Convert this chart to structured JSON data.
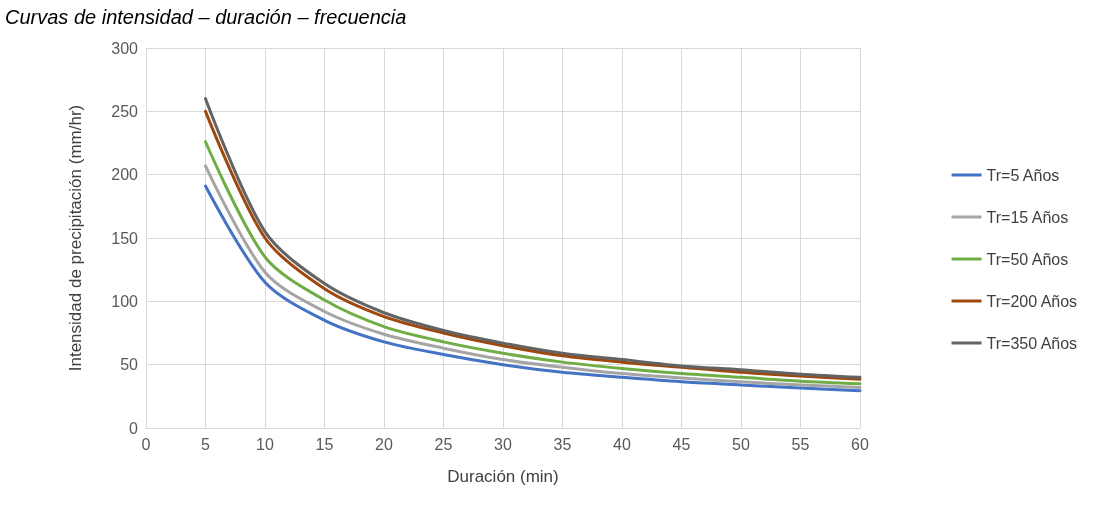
{
  "chart_data": {
    "type": "line",
    "title": "Curvas de intensidad – duración – frecuencia",
    "xlabel": "Duración (min)",
    "ylabel": "Intensidad de precipitación (mm/hr)",
    "x": [
      5,
      10,
      15,
      20,
      25,
      30,
      35,
      40,
      45,
      50,
      55,
      60
    ],
    "series": [
      {
        "name": "Tr=5 Años",
        "color": "#4472c4",
        "values": [
          191,
          115,
          85,
          68,
          58,
          50,
          44,
          40,
          36.5,
          34,
          31.5,
          29.5
        ]
      },
      {
        "name": "Tr=15 Años",
        "color": "#a5a5a5",
        "values": [
          207,
          123,
          92,
          74,
          63,
          54,
          48,
          43,
          39.5,
          36.5,
          34,
          32
        ]
      },
      {
        "name": "Tr=50 Años",
        "color": "#70ad47",
        "values": [
          226,
          135,
          101,
          80,
          68,
          59,
          52,
          47,
          43,
          40,
          37,
          35
        ]
      },
      {
        "name": "Tr=200 Años",
        "color": "#9e480e",
        "values": [
          250,
          150,
          110,
          88,
          75,
          65,
          57,
          52,
          48,
          44,
          41,
          38.5
        ]
      },
      {
        "name": "Tr=350 Años",
        "color": "#636363",
        "values": [
          260,
          155,
          114,
          91,
          77,
          67,
          59,
          54,
          49,
          46,
          42.5,
          40
        ]
      }
    ],
    "xlim": [
      0,
      60
    ],
    "xticks": [
      0,
      5,
      10,
      15,
      20,
      25,
      30,
      35,
      40,
      45,
      50,
      55,
      60
    ],
    "ylim": [
      0,
      300
    ],
    "yticks": [
      0,
      50,
      100,
      150,
      200,
      250,
      300
    ],
    "grid": true,
    "legend": "right",
    "marker": "none",
    "line_style": "solid"
  }
}
